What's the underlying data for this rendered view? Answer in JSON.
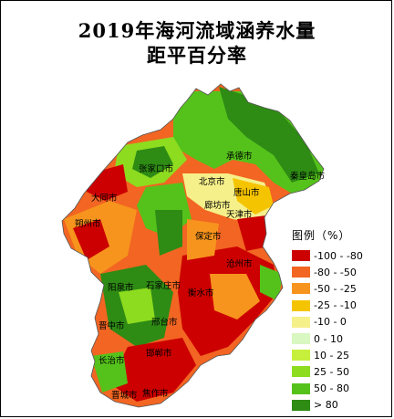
{
  "title": {
    "line1": "2019年海河流域涵养水量",
    "line2": "距平百分率"
  },
  "legend": {
    "title": "图例（%）",
    "items": [
      {
        "label": "-100 - -80",
        "color": "#cc0000"
      },
      {
        "label": "-80 - -50",
        "color": "#f26522"
      },
      {
        "label": "-50 - -25",
        "color": "#f7941d"
      },
      {
        "label": "-25 - -10",
        "color": "#f5c400"
      },
      {
        "label": "-10 - 0",
        "color": "#f6f08a"
      },
      {
        "label": "0 - 10",
        "color": "#d9f7c0"
      },
      {
        "label": "10 - 25",
        "color": "#c6f03c"
      },
      {
        "label": "25 - 50",
        "color": "#8ddc1f"
      },
      {
        "label": "50 - 80",
        "color": "#55c21b"
      },
      {
        "label": "> 80",
        "color": "#2e8b14"
      }
    ]
  },
  "cities": [
    {
      "id": "chengde",
      "name": "承德市"
    },
    {
      "id": "zhangjiakou",
      "name": "张家口市"
    },
    {
      "id": "qinhuangdao",
      "name": "秦皇岛市"
    },
    {
      "id": "beijing",
      "name": "北京市"
    },
    {
      "id": "datong",
      "name": "大同市"
    },
    {
      "id": "tangshan",
      "name": "唐山市"
    },
    {
      "id": "langfang",
      "name": "廊坊市"
    },
    {
      "id": "tianjin",
      "name": "天津市"
    },
    {
      "id": "shuozhou",
      "name": "朔州市"
    },
    {
      "id": "baoding",
      "name": "保定市"
    },
    {
      "id": "cangzhou",
      "name": "沧州市"
    },
    {
      "id": "yangquan",
      "name": "阳泉市"
    },
    {
      "id": "shijiazhuang",
      "name": "石家庄市"
    },
    {
      "id": "hengshui",
      "name": "衡水市"
    },
    {
      "id": "jinzhong",
      "name": "晋中市"
    },
    {
      "id": "xingtai",
      "name": "邢台市"
    },
    {
      "id": "handan",
      "name": "邯郸市"
    },
    {
      "id": "changzhi",
      "name": "长治市"
    },
    {
      "id": "jincheng",
      "name": "晋城市"
    },
    {
      "id": "jiaozuo",
      "name": "焦作市"
    }
  ]
}
